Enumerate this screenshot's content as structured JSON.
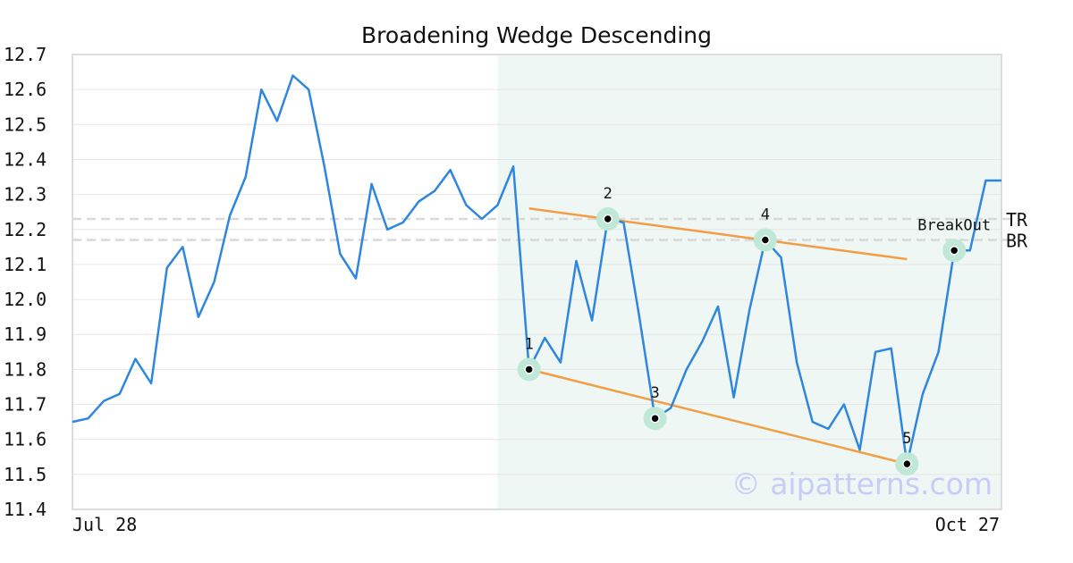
{
  "chart_data": {
    "type": "line",
    "title": "Broadening Wedge Descending",
    "xlabel": "",
    "ylabel": "",
    "ylim": [
      11.4,
      12.7
    ],
    "y_ticks": [
      "12.7",
      "12.6",
      "12.5",
      "12.4",
      "12.3",
      "12.2",
      "12.1",
      "12.0",
      "11.9",
      "11.8",
      "11.7",
      "11.6",
      "11.5",
      "11.4"
    ],
    "x_tick_labels": {
      "start": "Jul 28",
      "end": "Oct 27"
    },
    "grid": true,
    "series": [
      {
        "color": "#2e86de",
        "values": [
          11.65,
          11.66,
          11.71,
          11.73,
          11.83,
          11.76,
          12.09,
          12.15,
          11.95,
          12.05,
          12.24,
          12.35,
          12.6,
          12.51,
          12.64,
          12.6,
          12.38,
          12.13,
          12.06,
          12.33,
          12.2,
          12.22,
          12.28,
          12.31,
          12.37,
          12.27,
          12.23,
          12.27,
          12.38,
          11.8,
          11.89,
          11.82,
          12.11,
          11.94,
          12.23,
          12.22,
          11.95,
          11.66,
          11.69,
          11.8,
          11.88,
          11.98,
          11.72,
          11.97,
          12.17,
          12.12,
          11.82,
          11.65,
          11.63,
          11.7,
          11.57,
          11.85,
          11.86,
          11.53,
          11.73,
          11.85,
          12.14,
          12.14,
          12.34,
          12.34
        ]
      }
    ],
    "pattern_region": {
      "start_index": 27,
      "end_index": 59,
      "color": "#eef7f3"
    },
    "pattern_points": [
      {
        "label": "1",
        "index": 29,
        "value": 11.8
      },
      {
        "label": "2",
        "index": 34,
        "value": 12.23
      },
      {
        "label": "3",
        "index": 37,
        "value": 11.66
      },
      {
        "label": "4",
        "index": 44,
        "value": 12.17
      },
      {
        "label": "5",
        "index": 53,
        "value": 11.53
      },
      {
        "label": "BreakOut",
        "index": 56,
        "value": 12.14
      }
    ],
    "trendlines": [
      {
        "name": "upper",
        "color": "#f39c45",
        "from": {
          "index": 29,
          "value": 12.26
        },
        "to": {
          "index": 53,
          "value": 12.115
        }
      },
      {
        "name": "lower",
        "color": "#f39c45",
        "from": {
          "index": 29,
          "value": 11.8
        },
        "to": {
          "index": 53,
          "value": 11.53
        }
      }
    ],
    "reference_lines": [
      {
        "label": "TR",
        "value": 12.23
      },
      {
        "label": "BR",
        "value": 12.17
      }
    ],
    "watermark": "© aipatterns.com"
  }
}
